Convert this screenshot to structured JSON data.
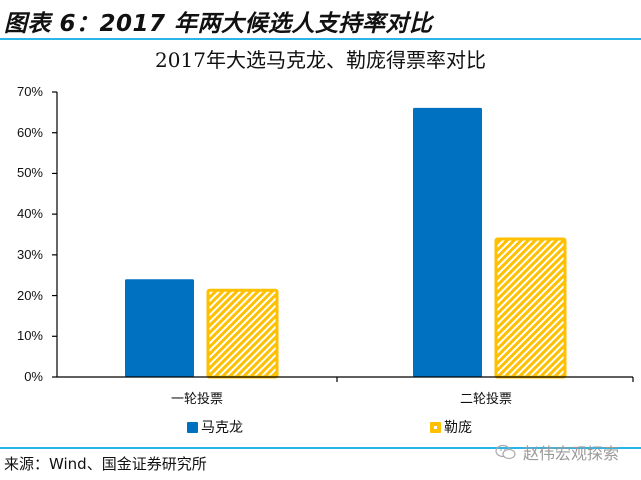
{
  "figure": {
    "title": "图表 6：2017 年两大候选人支持率对比",
    "source": "来源：Wind、国金证券研究所",
    "watermark": "赵伟宏观探索",
    "rule_color": "#29B5E8"
  },
  "chart_data": {
    "type": "bar",
    "title": "2017年大选马克龙、勒庞得票率对比",
    "categories": [
      "一轮投票",
      "二轮投票"
    ],
    "series": [
      {
        "name": "马克龙",
        "values": [
          24.0,
          66.1
        ],
        "color": "#0070C0",
        "pattern": "solid"
      },
      {
        "name": "勒庞",
        "values": [
          21.3,
          33.9
        ],
        "color": "#FFC000",
        "pattern": "diagonal-hatch"
      }
    ],
    "xlabel": "",
    "ylabel": "",
    "ylim": [
      0,
      70
    ],
    "yticks": [
      "0%",
      "10%",
      "20%",
      "30%",
      "40%",
      "50%",
      "60%",
      "70%"
    ],
    "grid": false,
    "legend_position": "bottom"
  }
}
